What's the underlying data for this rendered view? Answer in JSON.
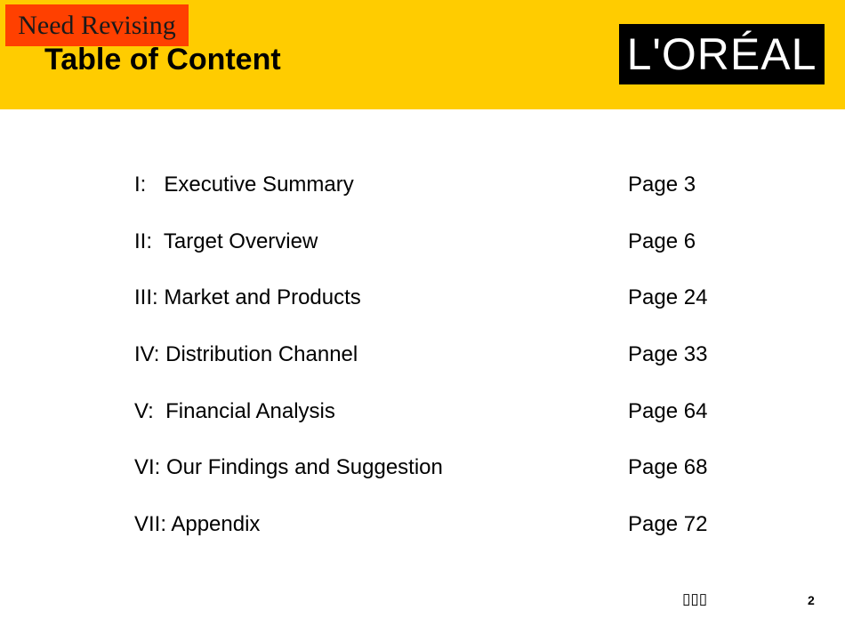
{
  "header": {
    "badge": "Need Revising",
    "title": "Table of Content",
    "logo_text": "L'ORÉAL"
  },
  "toc": {
    "items": [
      {
        "label": "I:   Executive Summary",
        "page": "Page 3"
      },
      {
        "label": "II:  Target Overview",
        "page": "Page 6"
      },
      {
        "label": "III: Market and Products",
        "page": "Page 24"
      },
      {
        "label": "IV: Distribution Channel",
        "page": "Page 33"
      },
      {
        "label": "V:  Financial Analysis",
        "page": "Page 64"
      },
      {
        "label": "VI: Our Findings and Suggestion",
        "page": "Page 68"
      },
      {
        "label": "VII: Appendix",
        "page": "Page 72"
      }
    ]
  },
  "footer": {
    "glyphs": "▯▯▯",
    "page_number": "2"
  },
  "colors": {
    "header_band": "#ffcc00",
    "badge_background": "#ff4000",
    "logo_background": "#000000",
    "logo_text": "#ffffff"
  }
}
